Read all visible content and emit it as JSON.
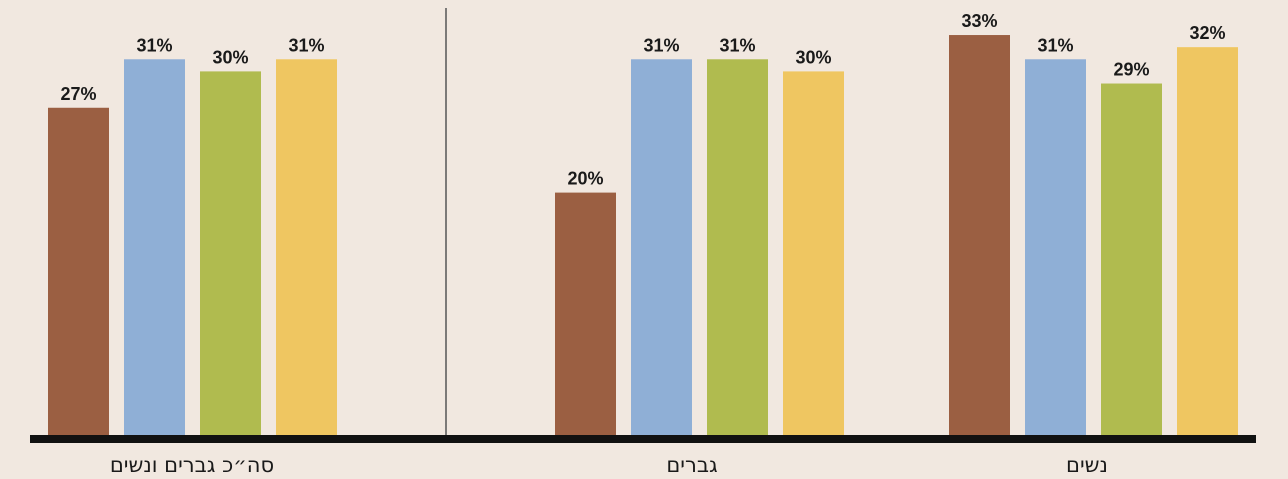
{
  "chart_data": {
    "type": "bar",
    "groups": [
      {
        "label": "סה״כ גברים ונשים",
        "values": [
          27,
          31,
          30,
          31
        ],
        "value_labels": [
          "27%",
          "31%",
          "30%",
          "31%"
        ]
      },
      {
        "label": "גברים",
        "values": [
          20,
          31,
          31,
          30
        ],
        "value_labels": [
          "20%",
          "31%",
          "31%",
          "30%"
        ]
      },
      {
        "label": "נשים",
        "values": [
          33,
          31,
          29,
          32
        ],
        "value_labels": [
          "33%",
          "31%",
          "29%",
          "32%"
        ]
      }
    ],
    "series_colors": [
      "#9b5f42",
      "#8fafd6",
      "#b0bb4f",
      "#efc661"
    ],
    "ylim": [
      0,
      36
    ],
    "grid": false,
    "legend": "none"
  },
  "colors": {
    "background": "#f1e8e0",
    "baseline": "#111111",
    "divider": "#555555"
  }
}
